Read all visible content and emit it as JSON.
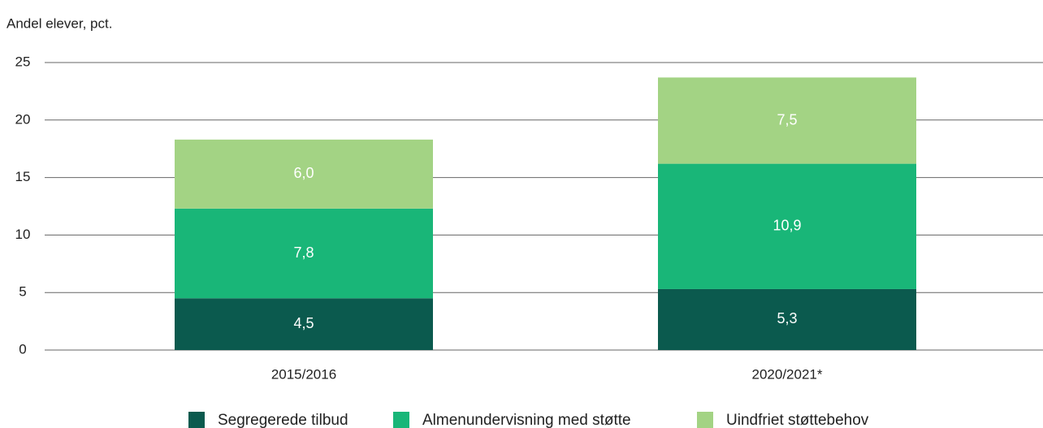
{
  "chart_data": {
    "type": "stacked_bar",
    "y_label": "Andel elever, pct.",
    "categories": [
      "2015/2016",
      "2020/2021*"
    ],
    "series": [
      {
        "name": "Segregerede tilbud",
        "color": "#0b5a4e",
        "values": [
          4.5,
          5.3
        ],
        "value_labels": [
          "4,5",
          "5,3"
        ]
      },
      {
        "name": "Almenundervisning med støtte",
        "color": "#19b678",
        "values": [
          7.8,
          10.9
        ],
        "value_labels": [
          "7,8",
          "10,9"
        ]
      },
      {
        "name": "Uindfriet støttebehov",
        "color": "#a3d384",
        "values": [
          6.0,
          7.5
        ],
        "value_labels": [
          "6,0",
          "7,5"
        ]
      }
    ],
    "ylim": [
      0,
      25
    ],
    "yticks": [
      0,
      5,
      10,
      15,
      20,
      25
    ],
    "grid": true,
    "legend": "bottom"
  }
}
